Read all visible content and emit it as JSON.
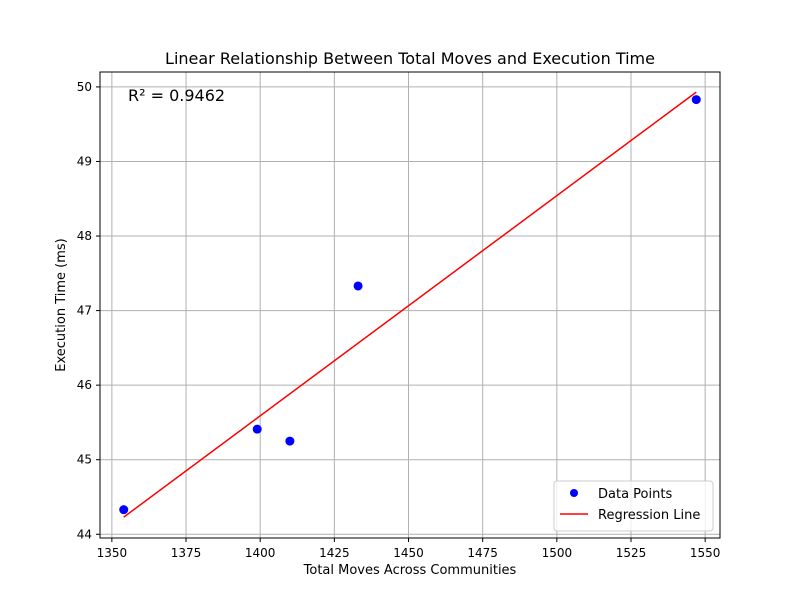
{
  "chart_data": {
    "type": "scatter",
    "title": "Linear Relationship Between Total Moves and Execution Time",
    "xlabel": "Total Moves Across Communities",
    "ylabel": "Execution Time (ms)",
    "xlim": [
      1346,
      1555
    ],
    "ylim": [
      43.95,
      50.2
    ],
    "xticks": [
      1350,
      1375,
      1400,
      1425,
      1450,
      1475,
      1500,
      1525,
      1550
    ],
    "yticks": [
      44,
      45,
      46,
      47,
      48,
      49,
      50
    ],
    "grid": true,
    "legend_position": "lower-right",
    "series": [
      {
        "name": "Data Points",
        "kind": "scatter",
        "color": "#0000ff",
        "points": [
          {
            "x": 1354,
            "y": 44.33
          },
          {
            "x": 1399,
            "y": 45.41
          },
          {
            "x": 1410,
            "y": 45.25
          },
          {
            "x": 1433,
            "y": 47.33
          },
          {
            "x": 1547,
            "y": 49.83
          }
        ]
      },
      {
        "name": "Regression Line",
        "kind": "line",
        "color": "#ff0000",
        "points": [
          {
            "x": 1354,
            "y": 44.23
          },
          {
            "x": 1547,
            "y": 49.93
          }
        ]
      }
    ],
    "annotation": {
      "text": "R² = 0.9462",
      "color": "#ff0000",
      "position": "upper-left"
    }
  }
}
